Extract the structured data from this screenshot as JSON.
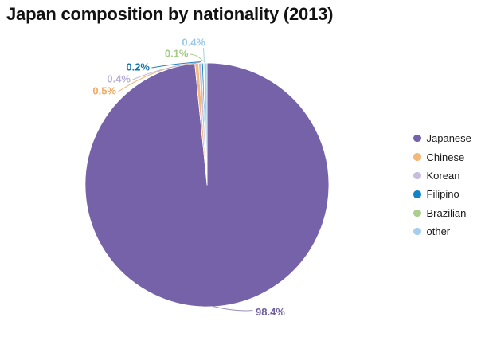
{
  "chart_data": {
    "type": "pie",
    "title": "Japan composition by nationality (2013)",
    "unit": "%",
    "direction": "clockwise",
    "start_angle_deg": 0,
    "legend_position": "right",
    "background_color": "#FFFFFF",
    "title_color": "#121212",
    "legend_text_color": "#1A1A1A",
    "series": [
      {
        "label": "Japanese",
        "value": 98.4,
        "display": "98.4%",
        "color": "#7562A8",
        "label_color": "#7160A2"
      },
      {
        "label": "Chinese",
        "value": 0.5,
        "display": "0.5%",
        "color": "#F4B878",
        "label_color": "#F0AB66"
      },
      {
        "label": "Korean",
        "value": 0.4,
        "display": "0.4%",
        "color": "#C6BDDF",
        "label_color": "#B9B0D6"
      },
      {
        "label": "Filipino",
        "value": 0.2,
        "display": "0.2%",
        "color": "#1283C4",
        "label_color": "#1173B4"
      },
      {
        "label": "Brazilian",
        "value": 0.1,
        "display": "0.1%",
        "color": "#A9CE8E",
        "label_color": "#A3CB85"
      },
      {
        "label": "other",
        "value": 0.4,
        "display": "0.4%",
        "color": "#A6CEEC",
        "label_color": "#9CC8E8"
      }
    ]
  }
}
